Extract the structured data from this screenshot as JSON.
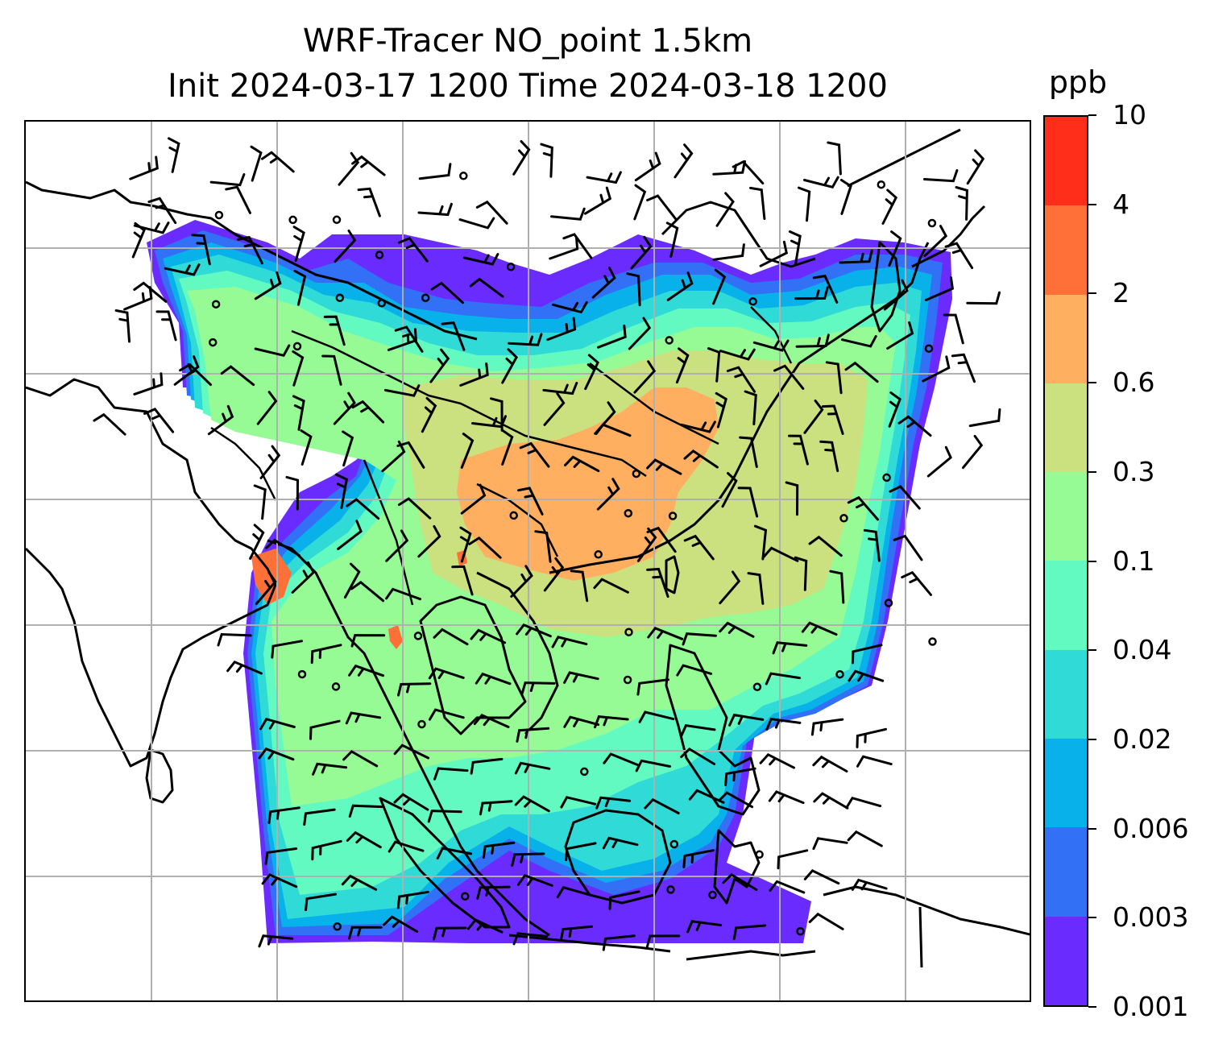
{
  "title": {
    "line1": "WRF-Tracer NO_point 1.5km",
    "line2": "Init 2024-03-17 1200 Time 2024-03-18 1200"
  },
  "colorbar": {
    "unit": "ppb",
    "levels": [
      "0.001",
      "0.003",
      "0.006",
      "0.02",
      "0.04",
      "0.1",
      "0.3",
      "0.6",
      "2",
      "4",
      "10"
    ],
    "colors": [
      "#6a2bff",
      "#3270f5",
      "#08b1ea",
      "#30dad6",
      "#63fac1",
      "#96fb95",
      "#cbe07e",
      "#ffaf5f",
      "#ff7038",
      "#ff2e1a"
    ]
  },
  "map": {
    "background": "#ffffff",
    "coastline_color": "#000000",
    "gridline_color": "#b0b0b0",
    "gridlines": true,
    "wind_barbs": true,
    "calm_markers": true
  }
}
